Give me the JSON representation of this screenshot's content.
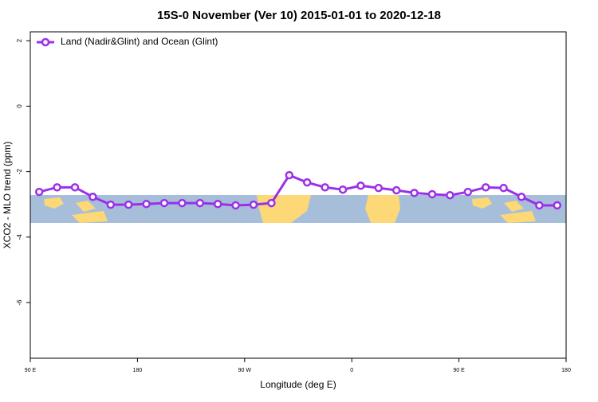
{
  "chart_data": {
    "type": "line",
    "title": "15S-0 November (Ver 10)   2015-01-01 to 2020-12-18",
    "x_label": "Longitude (deg E)",
    "y_label": "XCO2 - MLO trend (ppm)",
    "x": [
      97.5,
      112.5,
      127.5,
      142.5,
      157.5,
      172.5,
      187.5,
      202.5,
      217.5,
      232.5,
      247.5,
      262.5,
      277.5,
      292.5,
      307.5,
      322.5,
      337.5,
      352.5,
      367.5,
      382.5,
      397.5,
      412.5,
      427.5,
      442.5,
      457.5,
      472.5,
      487.5,
      502.5,
      517.5,
      532.5
    ],
    "series": [
      {
        "name": "Land (Nadir&Glint) and Ocean (Glint)",
        "color": "#9b30e8",
        "values": [
          -2.62,
          -2.48,
          -2.48,
          -2.77,
          -3.01,
          -3.01,
          -2.99,
          -2.96,
          -2.96,
          -2.96,
          -2.99,
          -3.03,
          -3.01,
          -2.96,
          -2.11,
          -2.33,
          -2.48,
          -2.55,
          -2.43,
          -2.5,
          -2.57,
          -2.65,
          -2.69,
          -2.72,
          -2.62,
          -2.48,
          -2.5,
          -2.77,
          -3.03,
          -3.03
        ]
      }
    ],
    "xlim": [
      90,
      540
    ],
    "xticks": [
      {
        "value": 90,
        "label": "90 E"
      },
      180,
      {
        "value": 270,
        "label": "90 W"
      },
      {
        "value": 360,
        "label": "0"
      },
      {
        "value": 450,
        "label": "90 E"
      },
      {
        "value": 540,
        "label": "180"
      }
    ],
    "ylim": [
      -7.7,
      2.27
    ],
    "yticks": [
      2,
      0,
      -2,
      -4,
      -6
    ],
    "legend": "top-left"
  }
}
